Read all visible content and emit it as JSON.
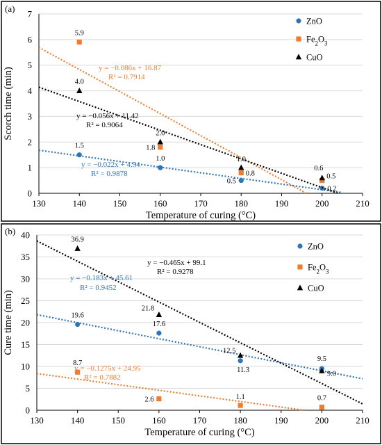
{
  "colors": {
    "ZnO": "#2e75b6",
    "Fe2O3": "#ed7d31",
    "CuO": "#000000"
  },
  "chart_data": [
    {
      "panel_label": "(a)",
      "type": "scatter",
      "xlabel": "Temperature of curing (°C)",
      "ylabel": "Scorch time (min)",
      "xlim": [
        130,
        210
      ],
      "ylim": [
        0,
        7
      ],
      "xticks": [
        130,
        140,
        150,
        160,
        170,
        180,
        190,
        200,
        210
      ],
      "yticks": [
        0,
        1,
        2,
        3,
        4,
        5,
        6,
        7
      ],
      "grid": "horizontal",
      "legend": "top-right",
      "series": [
        {
          "name": "ZnO",
          "marker": "circle",
          "points": [
            {
              "x": 140,
              "y": 1.5,
              "label": "1.5"
            },
            {
              "x": 160,
              "y": 1.0,
              "label": "1.0"
            },
            {
              "x": 180,
              "y": 0.5,
              "label": "0.5"
            },
            {
              "x": 200,
              "y": 0.2,
              "label": "0.2"
            }
          ],
          "trendline": {
            "slope": -0.022,
            "intercept": 4.54,
            "x_range": [
              130,
              205
            ],
            "equation": "y = −0.022x + 4.54",
            "r2": "R² = 0.9878"
          }
        },
        {
          "name": "Fe2O3",
          "marker": "square",
          "points": [
            {
              "x": 140,
              "y": 5.9,
              "label": "5.9"
            },
            {
              "x": 160,
              "y": 1.8,
              "label": "1.8"
            },
            {
              "x": 180,
              "y": 0.8,
              "label": "0.8"
            },
            {
              "x": 200,
              "y": 0.5,
              "label": "0.5"
            }
          ],
          "trendline": {
            "slope": -0.086,
            "intercept": 16.87,
            "x_range": [
              130,
              196.2
            ],
            "equation": "y = −0.086x + 16.87",
            "r2": "R² = 0.7914"
          }
        },
        {
          "name": "CuO",
          "marker": "triangle",
          "points": [
            {
              "x": 140,
              "y": 4.0,
              "label": "4.0"
            },
            {
              "x": 160,
              "y": 2.0,
              "label": "2.0"
            },
            {
              "x": 180,
              "y": 1.0,
              "label": "1.0"
            },
            {
              "x": 200,
              "y": 0.6,
              "label": "0.6"
            }
          ],
          "trendline": {
            "slope": -0.056,
            "intercept": 11.42,
            "x_range": [
              130,
              204
            ],
            "equation": "y = −0.056x + 11.42",
            "r2": "R² = 0.9064"
          }
        }
      ]
    },
    {
      "panel_label": "(b)",
      "type": "scatter",
      "xlabel": "Temperature of curing (°C)",
      "ylabel": "Cure time (min)",
      "xlim": [
        130,
        210
      ],
      "ylim": [
        0,
        40
      ],
      "xticks": [
        130,
        140,
        150,
        160,
        170,
        180,
        190,
        200,
        210
      ],
      "yticks": [
        0,
        5,
        10,
        15,
        20,
        25,
        30,
        35,
        40
      ],
      "grid": "horizontal",
      "legend": "top-right",
      "series": [
        {
          "name": "ZnO",
          "marker": "circle",
          "points": [
            {
              "x": 140,
              "y": 19.6,
              "label": "19.6"
            },
            {
              "x": 160,
              "y": 17.6,
              "label": "17.6"
            },
            {
              "x": 180,
              "y": 11.3,
              "label": "11.3"
            },
            {
              "x": 200,
              "y": 9.5,
              "label": "9.5"
            }
          ],
          "trendline": {
            "slope": -0.183,
            "intercept": 45.61,
            "x_range": [
              130,
              210
            ],
            "equation": "y = −0.183x + 45.61",
            "r2": "R² = 0.9452"
          }
        },
        {
          "name": "Fe2O3",
          "marker": "square",
          "points": [
            {
              "x": 140,
              "y": 8.7,
              "label": "8.7"
            },
            {
              "x": 160,
              "y": 2.6,
              "label": "2.6"
            },
            {
              "x": 180,
              "y": 1.1,
              "label": "1.1"
            },
            {
              "x": 200,
              "y": 0.7,
              "label": "0.7"
            }
          ],
          "trendline": {
            "slope": -0.1275,
            "intercept": 24.95,
            "x_range": [
              130,
              195.7
            ],
            "equation": "y = −0.1275x + 24.95",
            "r2": "R² = 0.7882"
          }
        },
        {
          "name": "CuO",
          "marker": "triangle",
          "points": [
            {
              "x": 140,
              "y": 36.9,
              "label": "36.9"
            },
            {
              "x": 160,
              "y": 21.8,
              "label": "21.8"
            },
            {
              "x": 180,
              "y": 12.5,
              "label": "12.5"
            },
            {
              "x": 200,
              "y": 9.0,
              "label": "9.0"
            }
          ],
          "trendline": {
            "slope": -0.465,
            "intercept": 99.1,
            "x_range": [
              130,
              210
            ],
            "equation": "y = −0.465x + 99.1",
            "r2": "R² = 0.9278"
          }
        }
      ]
    }
  ]
}
